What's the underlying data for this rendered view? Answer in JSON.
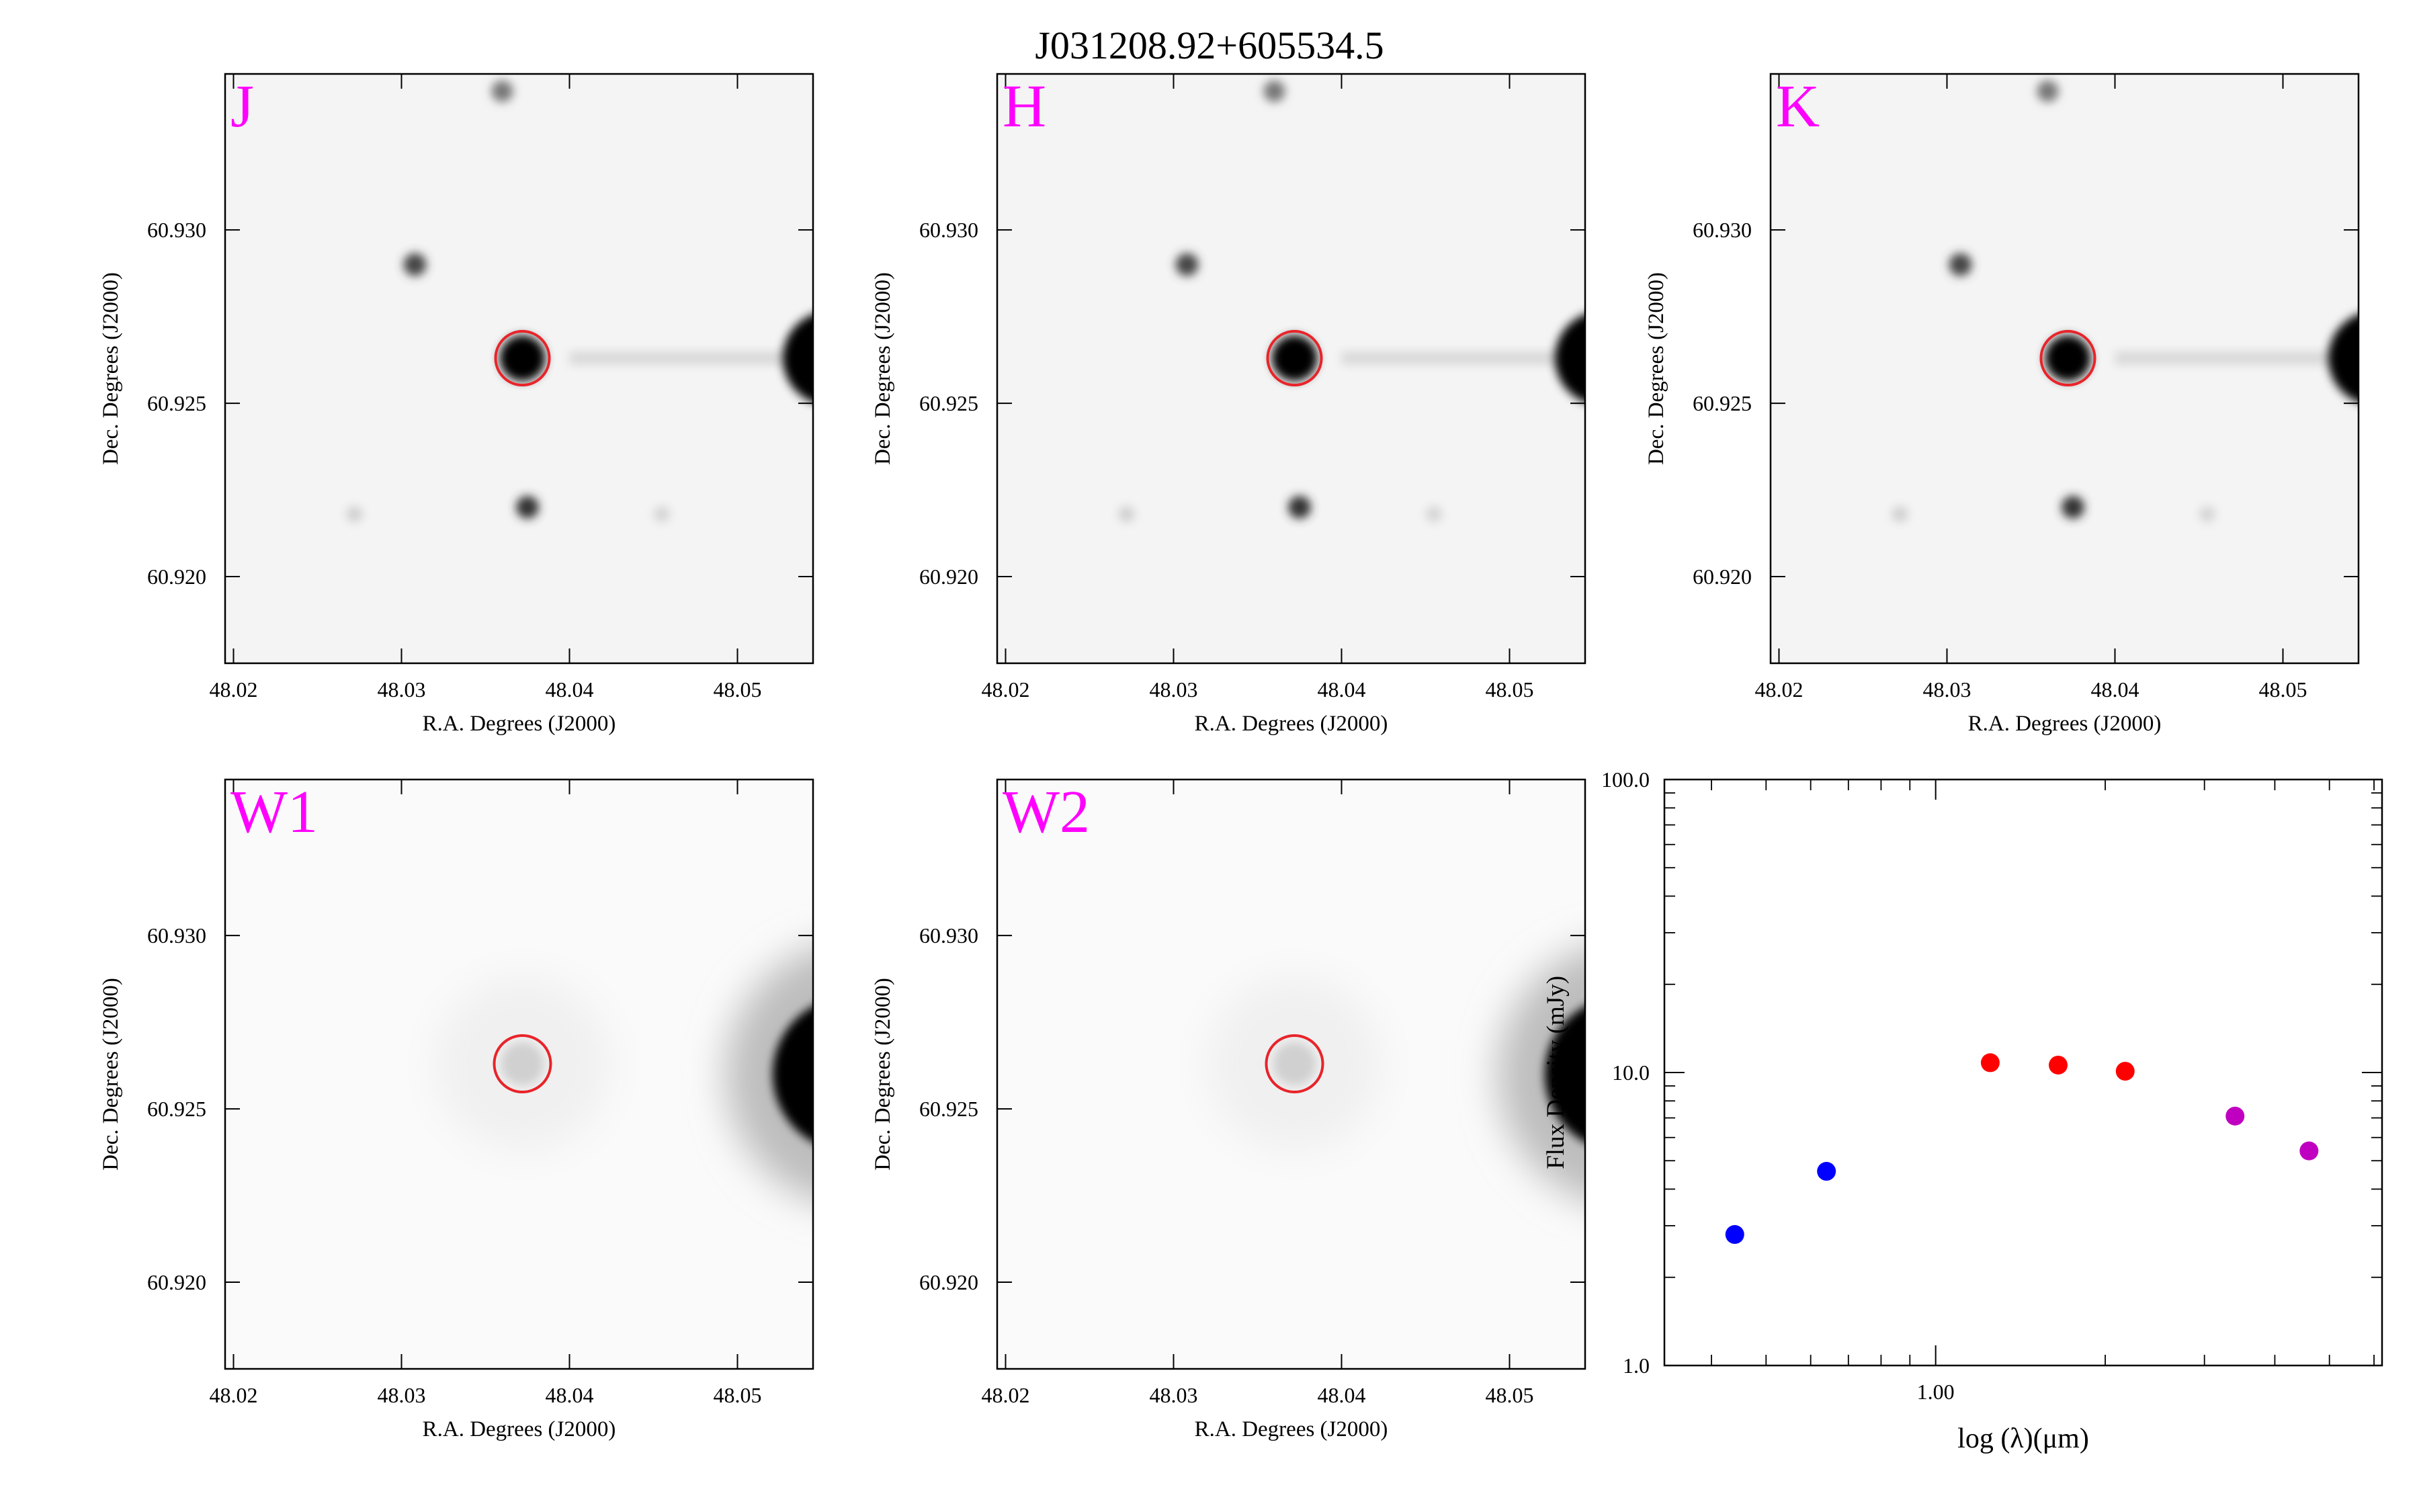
{
  "title": "J031208.92+605534.5",
  "colors": {
    "band_label": "#ff00ff",
    "aperture": "#e8242a",
    "jhk_points": "#ff0000",
    "blue_points": "#0000ff",
    "wise_points": "#c000c0"
  },
  "panels": [
    {
      "band": "J",
      "xlabel": "R.A. Degrees (J2000)",
      "ylabel": "Dec. Degrees (J2000)",
      "xticks": [
        "48.02",
        "48.03",
        "48.04",
        "48.05"
      ],
      "yticks": [
        "60.930",
        "60.925",
        "60.920"
      ]
    },
    {
      "band": "H",
      "xlabel": "R.A. Degrees (J2000)",
      "ylabel": "Dec. Degrees (J2000)",
      "xticks": [
        "48.02",
        "48.03",
        "48.04",
        "48.05"
      ],
      "yticks": [
        "60.930",
        "60.925",
        "60.920"
      ]
    },
    {
      "band": "K",
      "xlabel": "R.A. Degrees (J2000)",
      "ylabel": "Dec. Degrees (J2000)",
      "xticks": [
        "48.02",
        "48.03",
        "48.04",
        "48.05"
      ],
      "yticks": [
        "60.930",
        "60.925",
        "60.920"
      ]
    },
    {
      "band": "W1",
      "xlabel": "R.A. Degrees (J2000)",
      "ylabel": "Dec. Degrees (J2000)",
      "xticks": [
        "48.02",
        "48.03",
        "48.04",
        "48.05"
      ],
      "yticks": [
        "60.930",
        "60.925",
        "60.920"
      ]
    },
    {
      "band": "W2",
      "xlabel": "R.A. Degrees (J2000)",
      "ylabel": "Dec. Degrees (J2000)",
      "xticks": [
        "48.02",
        "48.03",
        "48.04",
        "48.05"
      ],
      "yticks": [
        "60.930",
        "60.925",
        "60.920"
      ]
    }
  ],
  "chart_data": {
    "type": "scatter",
    "xlabel": "log (λ)(μm)",
    "ylabel": "Flux Density (mJy)",
    "yscale": "log",
    "xscale": "log",
    "ylim": [
      1.0,
      100.0
    ],
    "yticks": [
      "100.0",
      "10.0",
      "1.0"
    ],
    "xticks": [
      "1.00"
    ],
    "points": [
      {
        "x": 0.44,
        "y": 2.8,
        "color": "#0000ff"
      },
      {
        "x": 0.64,
        "y": 4.6,
        "color": "#0000ff"
      },
      {
        "x": 1.25,
        "y": 10.8,
        "color": "#ff0000"
      },
      {
        "x": 1.65,
        "y": 10.6,
        "color": "#ff0000"
      },
      {
        "x": 2.17,
        "y": 10.1,
        "color": "#ff0000"
      },
      {
        "x": 3.4,
        "y": 7.1,
        "color": "#c000c0"
      },
      {
        "x": 4.6,
        "y": 5.4,
        "color": "#c000c0"
      }
    ]
  }
}
